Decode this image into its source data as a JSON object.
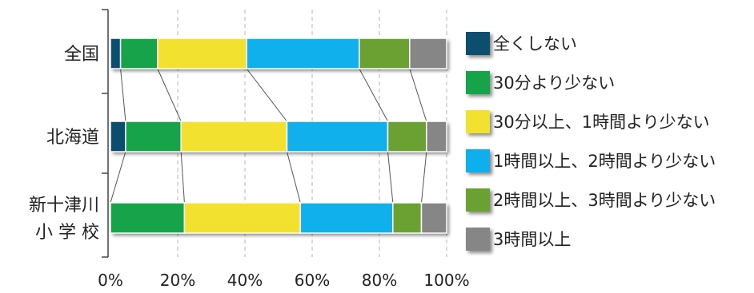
{
  "chart_data": {
    "type": "bar",
    "orientation": "horizontal",
    "stacked": true,
    "percent": true,
    "categories": [
      "全国",
      "北海道",
      "新十津川小学校"
    ],
    "category_label_lines": [
      [
        "全国"
      ],
      [
        "北海道"
      ],
      [
        "新十津川",
        "小 学 校"
      ]
    ],
    "series": [
      {
        "name": "全くしない",
        "color": "#0b4d6e",
        "values": [
          3.0,
          4.5,
          0.0
        ]
      },
      {
        "name": "30分より少ない",
        "color": "#17a34a",
        "values": [
          11.0,
          16.5,
          22.0
        ]
      },
      {
        "name": "30分以上、1時間より少ない",
        "color": "#f2e12f",
        "values": [
          26.5,
          31.5,
          34.5
        ]
      },
      {
        "name": "1時間以上、2時間より少ない",
        "color": "#10b0ec",
        "values": [
          33.5,
          30.0,
          27.5
        ]
      },
      {
        "name": "2時間以上、3時間より少ない",
        "color": "#6aa132",
        "values": [
          15.0,
          11.5,
          8.5
        ]
      },
      {
        "name": "3時間以上",
        "color": "#868686",
        "values": [
          11.0,
          6.0,
          7.5
        ]
      }
    ],
    "xlim": [
      0,
      100
    ],
    "xticks": [
      0,
      20,
      40,
      60,
      80,
      100
    ],
    "xtick_labels": [
      "0%",
      "20%",
      "40%",
      "60%",
      "80%",
      "100%"
    ],
    "grid": {
      "x": true,
      "style": "dashed"
    },
    "legend_position": "right"
  }
}
